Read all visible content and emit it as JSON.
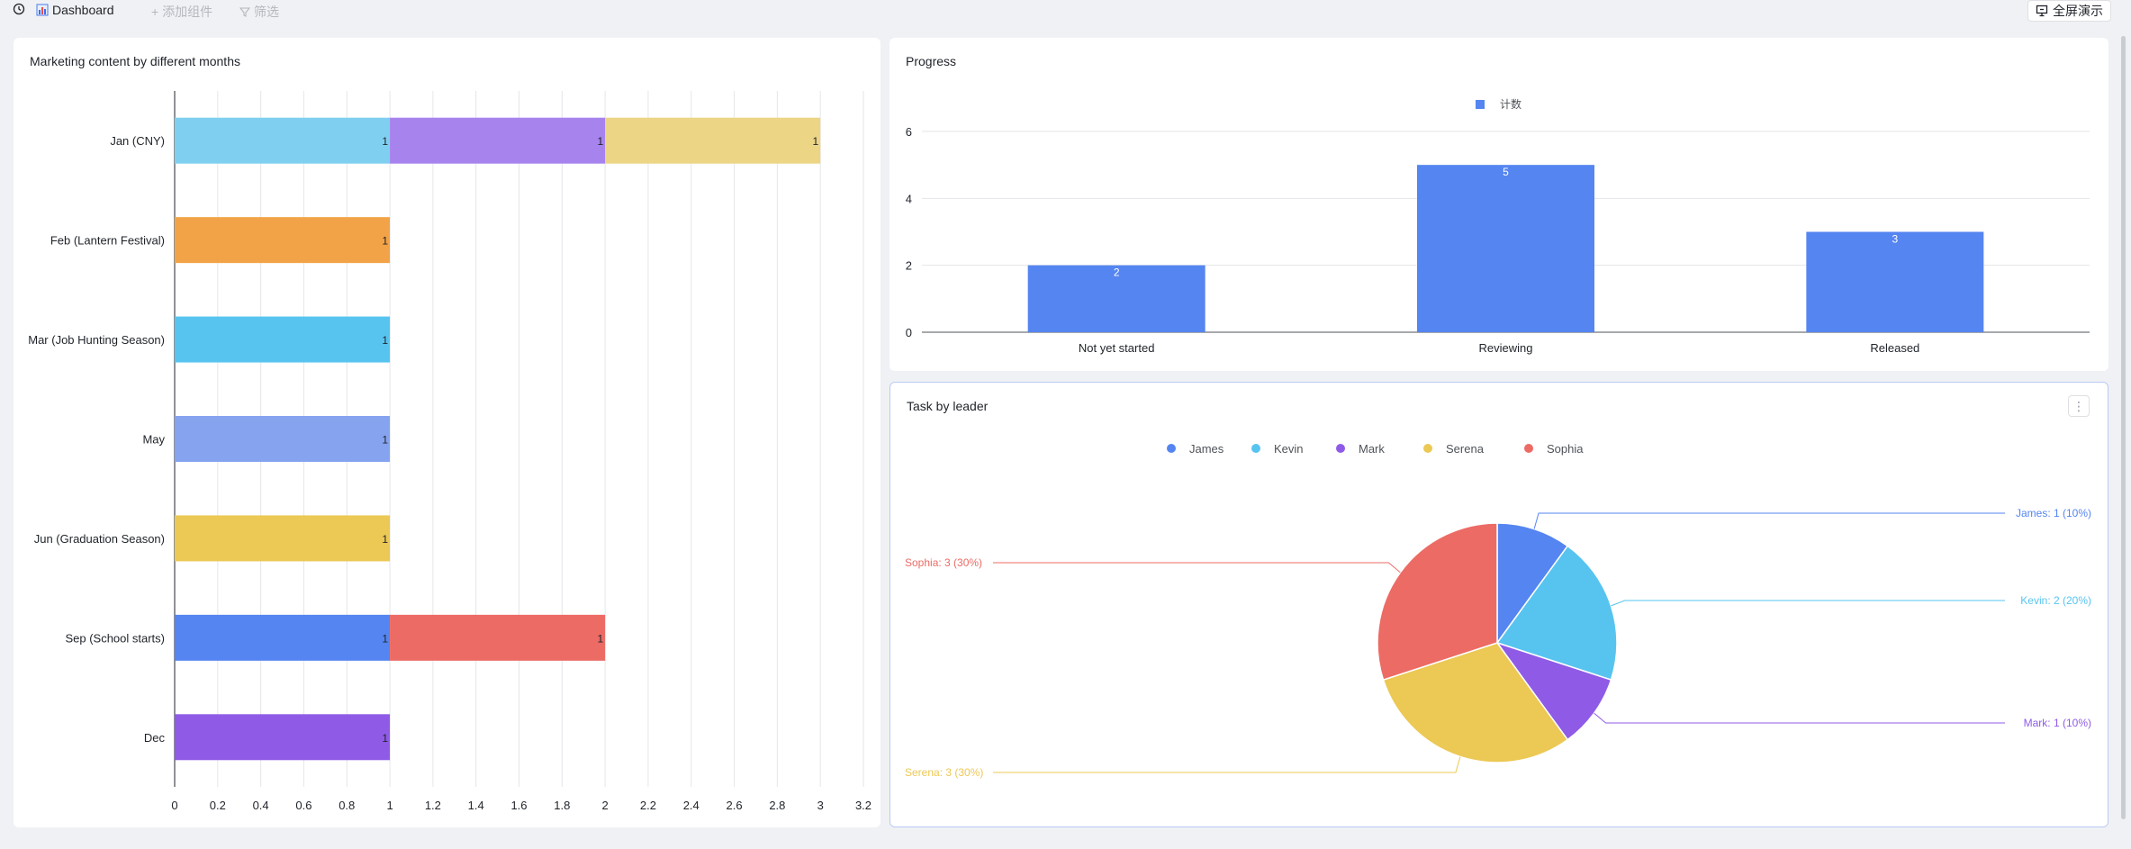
{
  "toolbar": {
    "title": "Dashboard",
    "add_widget": "添加组件",
    "filter": "筛选",
    "present": "全屏演示"
  },
  "colors": {
    "blue": "#5585f0",
    "cyan": "#57c4f0",
    "purple": "#8f5be6",
    "yellow": "#ecc854",
    "red": "#ec6b65"
  },
  "cards": {
    "marketing": {
      "title": "Marketing content by different months"
    },
    "progress": {
      "title": "Progress"
    },
    "tasks": {
      "title": "Task by leader"
    }
  },
  "chart_data": [
    {
      "id": "marketing",
      "type": "bar",
      "orientation": "horizontal",
      "stacked": true,
      "title": "Marketing content by different months",
      "categories": [
        "Jan (CNY)",
        "Feb (Lantern Festival)",
        "Mar (Job Hunting Season)",
        "May",
        "Jun (Graduation Season)",
        "Sep (School starts)",
        "Dec"
      ],
      "rows": [
        {
          "category": "Jan (CNY)",
          "segments": [
            {
              "value": 1,
              "color": "#7fd0f0",
              "label": "1"
            },
            {
              "value": 1,
              "color": "#a783ee",
              "label": "1"
            },
            {
              "value": 1,
              "color": "#ecd585",
              "label": "1"
            }
          ]
        },
        {
          "category": "Feb (Lantern Festival)",
          "segments": [
            {
              "value": 1,
              "color": "#f3a347",
              "label": "1"
            }
          ]
        },
        {
          "category": "Mar (Job Hunting Season)",
          "segments": [
            {
              "value": 1,
              "color": "#57c4f0",
              "label": "1"
            }
          ]
        },
        {
          "category": "May",
          "segments": [
            {
              "value": 1,
              "color": "#86a3f0",
              "label": "1"
            }
          ]
        },
        {
          "category": "Jun (Graduation Season)",
          "segments": [
            {
              "value": 1,
              "color": "#ecc854",
              "label": "1"
            }
          ]
        },
        {
          "category": "Sep (School starts)",
          "segments": [
            {
              "value": 1,
              "color": "#5585f0",
              "label": "1"
            },
            {
              "value": 1,
              "color": "#ec6b65",
              "label": "1"
            }
          ]
        },
        {
          "category": "Dec",
          "segments": [
            {
              "value": 1,
              "color": "#8f5be6",
              "label": "1"
            }
          ]
        }
      ],
      "xlim": [
        0,
        3.2
      ],
      "ticks": [
        "0",
        "0.2",
        "0.4",
        "0.6",
        "0.8",
        "1",
        "1.2",
        "1.4",
        "1.6",
        "1.8",
        "2",
        "2.2",
        "2.4",
        "2.6",
        "2.8",
        "3",
        "3.2"
      ],
      "grid": true
    },
    {
      "id": "progress",
      "type": "bar",
      "title": "Progress",
      "legend": "计数",
      "legend_position": "top-center",
      "categories": [
        "Not yet started",
        "Reviewing",
        "Released"
      ],
      "values": [
        2,
        5,
        3
      ],
      "ylim": [
        0,
        6
      ],
      "yticks": [
        "0",
        "2",
        "4",
        "6"
      ],
      "grid": true
    },
    {
      "id": "tasks",
      "type": "pie",
      "title": "Task by leader",
      "legend_position": "top-center",
      "slices": [
        {
          "name": "James",
          "value": 1,
          "color": "#5585f0",
          "label": "James: 1 (10%)"
        },
        {
          "name": "Kevin",
          "value": 2,
          "color": "#57c4f0",
          "label": "Kevin: 2 (20%)"
        },
        {
          "name": "Mark",
          "value": 1,
          "color": "#8f5be6",
          "label": "Mark: 1 (10%)"
        },
        {
          "name": "Serena",
          "value": 3,
          "color": "#ecc854",
          "label": "Serena: 3 (30%)"
        },
        {
          "name": "Sophia",
          "value": 3,
          "color": "#ec6b65",
          "label": "Sophia: 3 (30%)"
        }
      ]
    }
  ]
}
